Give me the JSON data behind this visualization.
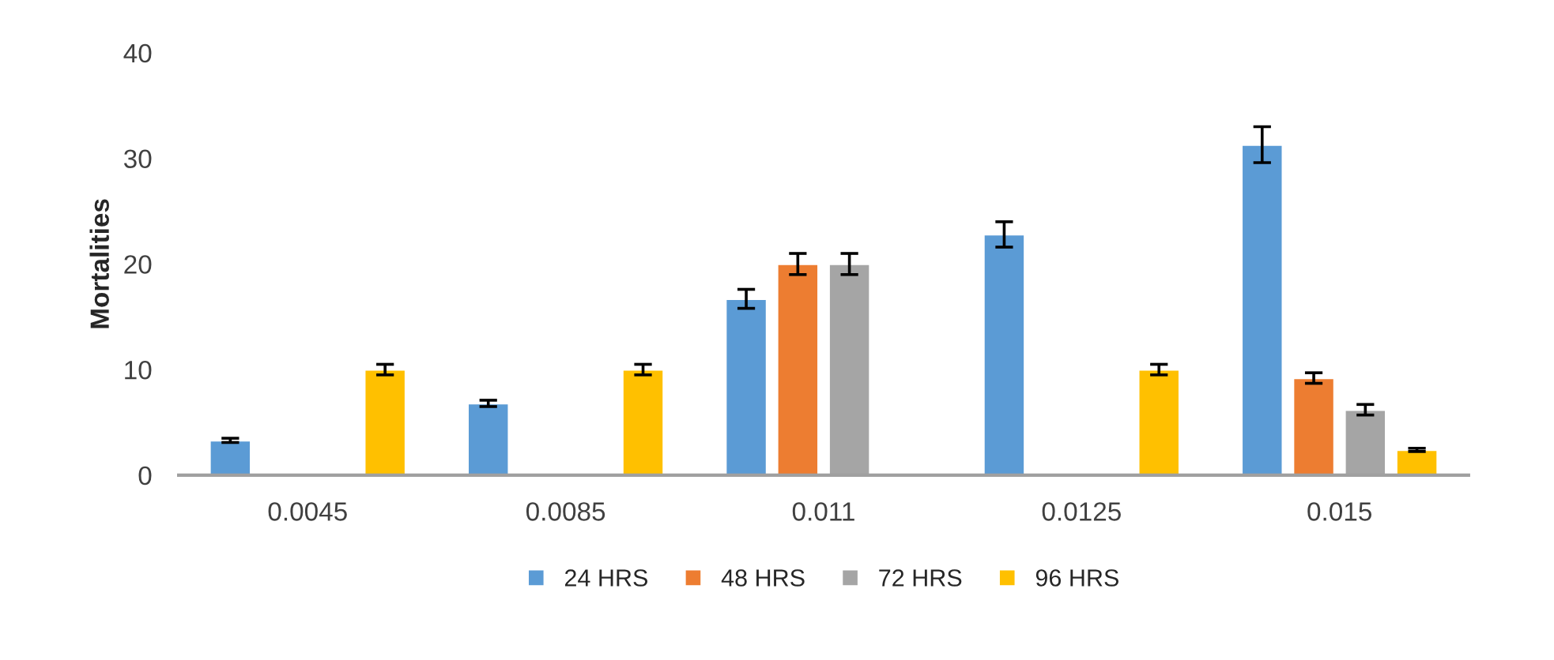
{
  "chart_data": {
    "type": "bar",
    "ylabel": "Mortalities",
    "categories": [
      "0.0045",
      "0.0085",
      "0.011",
      "0.0125",
      "0.015"
    ],
    "series": [
      {
        "name": "24 HRS",
        "color": "#5b9bd5",
        "values": [
          3.3,
          6.8,
          16.7,
          22.8,
          31.3
        ],
        "errors": [
          0.2,
          0.3,
          0.9,
          1.2,
          1.7
        ]
      },
      {
        "name": "48 HRS",
        "color": "#ed7d31",
        "values": [
          null,
          null,
          20,
          null,
          9.2
        ],
        "errors": [
          null,
          null,
          1,
          null,
          0.5
        ]
      },
      {
        "name": "72 HRS",
        "color": "#a5a5a5",
        "values": [
          null,
          null,
          20,
          null,
          6.2
        ],
        "errors": [
          null,
          null,
          1,
          null,
          0.5
        ]
      },
      {
        "name": "96 HRS",
        "color": "#ffc000",
        "values": [
          10,
          10,
          null,
          10,
          2.4
        ],
        "errors": [
          0.5,
          0.5,
          null,
          0.5,
          0.15
        ]
      }
    ],
    "ylim": [
      0,
      40
    ],
    "yticks": [
      0,
      10,
      20,
      30,
      40
    ],
    "grid": false,
    "legend": "bottom"
  }
}
